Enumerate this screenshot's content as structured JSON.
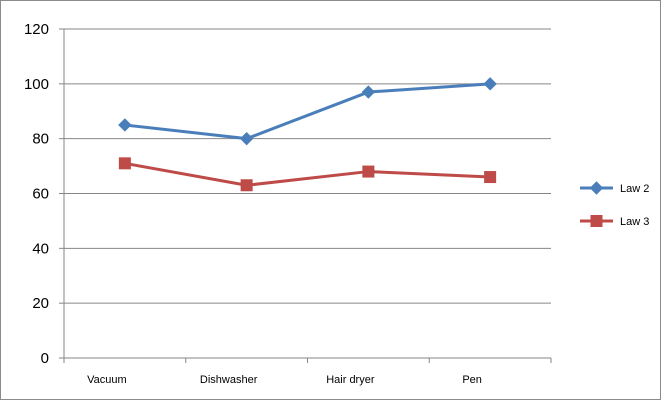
{
  "chart_data": {
    "type": "line",
    "title": "",
    "xlabel": "",
    "ylabel": "",
    "categories": [
      "Vacuum",
      "Dishwasher",
      "Hair dryer",
      "Pen"
    ],
    "series": [
      {
        "name": "Law 2",
        "values": [
          85,
          80,
          97,
          100
        ],
        "color": "#4a7ebb",
        "marker": "diamond"
      },
      {
        "name": "Law 3",
        "values": [
          71,
          63,
          68,
          66
        ],
        "color": "#be4b48",
        "marker": "square"
      }
    ],
    "ylim": [
      0,
      120
    ],
    "yticks": [
      "0",
      "20",
      "40",
      "60",
      "80",
      "100",
      "120"
    ],
    "grid": true,
    "legend_position": "right"
  }
}
